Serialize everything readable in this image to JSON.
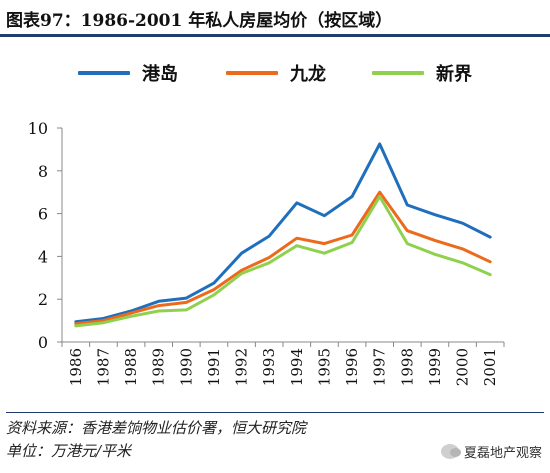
{
  "title": "图表97：1986-2001 年私人房屋均价（按区域）",
  "source_line": "资料来源：香港差饷物业估价署，恒大研究院",
  "unit_line": "单位：万港元/平米",
  "watermark": "夏磊地产观察",
  "chart_data": {
    "type": "line",
    "x": [
      "1986",
      "1987",
      "1988",
      "1989",
      "1990",
      "1991",
      "1992",
      "1993",
      "1994",
      "1995",
      "1996",
      "1997",
      "1998",
      "1999",
      "2000",
      "2001"
    ],
    "series": [
      {
        "name": "港岛",
        "color": "#1f6fbd",
        "values": [
          0.95,
          1.1,
          1.45,
          1.9,
          2.05,
          2.75,
          4.15,
          4.95,
          6.5,
          5.9,
          6.8,
          9.25,
          6.4,
          5.95,
          5.55,
          4.9
        ]
      },
      {
        "name": "九龙",
        "color": "#ec6a1c",
        "values": [
          0.85,
          1.0,
          1.35,
          1.7,
          1.85,
          2.45,
          3.35,
          3.95,
          4.85,
          4.6,
          5.0,
          7.0,
          5.2,
          4.75,
          4.35,
          3.75
        ]
      },
      {
        "name": "新界",
        "color": "#8fd14f",
        "values": [
          0.75,
          0.9,
          1.2,
          1.45,
          1.5,
          2.2,
          3.2,
          3.7,
          4.5,
          4.15,
          4.65,
          6.8,
          4.6,
          4.1,
          3.7,
          3.15
        ]
      }
    ],
    "yticks": [
      0,
      2,
      4,
      6,
      8,
      10
    ],
    "ylim": [
      0,
      10
    ],
    "grid": false,
    "legend_position": "top"
  }
}
